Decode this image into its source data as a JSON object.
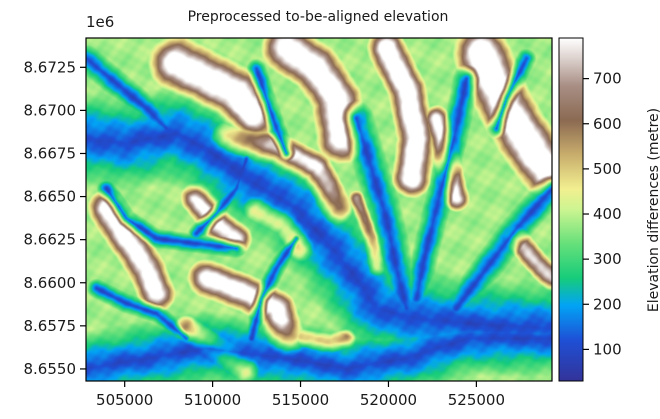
{
  "chart_data": {
    "type": "heatmap",
    "title": "Preprocessed to-be-aligned elevation",
    "x_ticks": [
      505000,
      510000,
      515000,
      520000,
      525000
    ],
    "x_tick_labels": [
      "505000",
      "510000",
      "515000",
      "520000",
      "525000"
    ],
    "xlim": [
      502800,
      529300
    ],
    "y_ticks": [
      8.655,
      8.6575,
      8.66,
      8.6625,
      8.665,
      8.6675,
      8.67,
      8.6725
    ],
    "y_tick_labels": [
      "8.6550",
      "8.6575",
      "8.6600",
      "8.6625",
      "8.6650",
      "8.6675",
      "8.6700",
      "8.6725"
    ],
    "ylim": [
      8.6543,
      8.6742
    ],
    "y_offset_label": "1e6",
    "colorbar": {
      "label": "Elevation differences (metre)",
      "ticks": [
        100,
        200,
        300,
        400,
        500,
        600,
        700
      ],
      "tick_labels": [
        "100",
        "200",
        "300",
        "400",
        "500",
        "600",
        "700"
      ],
      "range": [
        30,
        790
      ],
      "colormap": "terrain"
    },
    "field_description": "valley floor lowest, mountain ridges highest"
  }
}
